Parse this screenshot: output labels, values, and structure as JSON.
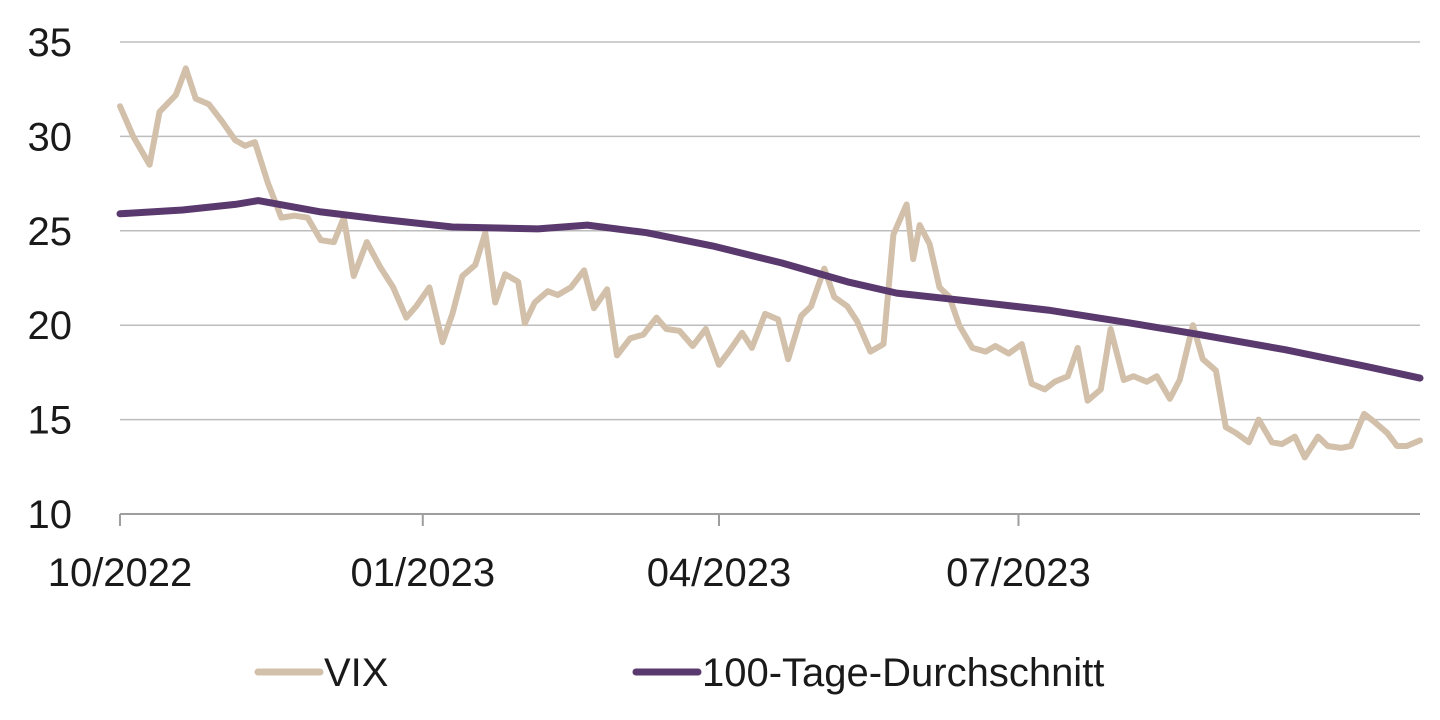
{
  "chart_data": {
    "type": "line",
    "title": "",
    "xlabel": "",
    "ylabel": "",
    "x_range": [
      "2022-10-01",
      "2023-10-31"
    ],
    "ylim": [
      10,
      35
    ],
    "y_ticks": [
      10,
      15,
      20,
      25,
      30,
      35
    ],
    "x_ticks": [
      {
        "date": "2022-10-01",
        "label": "10/2022"
      },
      {
        "date": "2023-01-01",
        "label": "01/2023"
      },
      {
        "date": "2023-04-01",
        "label": "04/2023"
      },
      {
        "date": "2023-07-01",
        "label": "07/2023"
      }
    ],
    "grid": "horizontal",
    "legend_position": "bottom",
    "series": [
      {
        "name": "VIX",
        "color": "#d2c0aa",
        "points": [
          [
            "2022-10-01",
            31.6
          ],
          [
            "2022-10-05",
            30.0
          ],
          [
            "2022-10-10",
            28.5
          ],
          [
            "2022-10-13",
            31.3
          ],
          [
            "2022-10-18",
            32.2
          ],
          [
            "2022-10-21",
            33.6
          ],
          [
            "2022-10-24",
            32.0
          ],
          [
            "2022-10-28",
            31.7
          ],
          [
            "2022-11-01",
            30.8
          ],
          [
            "2022-11-05",
            29.8
          ],
          [
            "2022-11-08",
            29.5
          ],
          [
            "2022-11-11",
            29.7
          ],
          [
            "2022-11-15",
            27.5
          ],
          [
            "2022-11-19",
            25.7
          ],
          [
            "2022-11-23",
            25.8
          ],
          [
            "2022-11-27",
            25.7
          ],
          [
            "2022-12-01",
            24.5
          ],
          [
            "2022-12-05",
            24.4
          ],
          [
            "2022-12-08",
            25.7
          ],
          [
            "2022-12-11",
            22.6
          ],
          [
            "2022-12-15",
            24.4
          ],
          [
            "2022-12-19",
            23.1
          ],
          [
            "2022-12-23",
            22.0
          ],
          [
            "2022-12-27",
            20.4
          ],
          [
            "2022-12-30",
            21.0
          ],
          [
            "2023-01-03",
            22.0
          ],
          [
            "2023-01-07",
            19.1
          ],
          [
            "2023-01-10",
            20.6
          ],
          [
            "2023-01-13",
            22.6
          ],
          [
            "2023-01-17",
            23.2
          ],
          [
            "2023-01-20",
            24.9
          ],
          [
            "2023-01-23",
            21.2
          ],
          [
            "2023-01-26",
            22.7
          ],
          [
            "2023-01-30",
            22.3
          ],
          [
            "2023-02-01",
            20.1
          ],
          [
            "2023-02-04",
            21.2
          ],
          [
            "2023-02-08",
            21.8
          ],
          [
            "2023-02-11",
            21.6
          ],
          [
            "2023-02-15",
            22.0
          ],
          [
            "2023-02-19",
            22.9
          ],
          [
            "2023-02-22",
            20.9
          ],
          [
            "2023-02-26",
            21.9
          ],
          [
            "2023-03-01",
            18.4
          ],
          [
            "2023-03-05",
            19.3
          ],
          [
            "2023-03-09",
            19.5
          ],
          [
            "2023-03-13",
            20.4
          ],
          [
            "2023-03-16",
            19.8
          ],
          [
            "2023-03-20",
            19.7
          ],
          [
            "2023-03-24",
            18.9
          ],
          [
            "2023-03-28",
            19.8
          ],
          [
            "2023-04-01",
            17.9
          ],
          [
            "2023-04-04",
            18.6
          ],
          [
            "2023-04-08",
            19.6
          ],
          [
            "2023-04-11",
            18.8
          ],
          [
            "2023-04-15",
            20.6
          ],
          [
            "2023-04-19",
            20.3
          ],
          [
            "2023-04-22",
            18.2
          ],
          [
            "2023-04-26",
            20.5
          ],
          [
            "2023-04-29",
            21.0
          ],
          [
            "2023-05-03",
            23.0
          ],
          [
            "2023-05-06",
            21.5
          ],
          [
            "2023-05-10",
            21.0
          ],
          [
            "2023-05-13",
            20.2
          ],
          [
            "2023-05-17",
            18.6
          ],
          [
            "2023-05-21",
            19.0
          ],
          [
            "2023-05-24",
            24.8
          ],
          [
            "2023-05-28",
            26.4
          ],
          [
            "2023-05-30",
            23.5
          ],
          [
            "2023-06-01",
            25.3
          ],
          [
            "2023-06-04",
            24.3
          ],
          [
            "2023-06-07",
            22.0
          ],
          [
            "2023-06-10",
            21.5
          ],
          [
            "2023-06-13",
            20.0
          ],
          [
            "2023-06-17",
            18.8
          ],
          [
            "2023-06-21",
            18.6
          ],
          [
            "2023-06-24",
            18.9
          ],
          [
            "2023-06-28",
            18.5
          ],
          [
            "2023-07-02",
            19.0
          ],
          [
            "2023-07-05",
            16.9
          ],
          [
            "2023-07-09",
            16.6
          ],
          [
            "2023-07-12",
            17.0
          ],
          [
            "2023-07-16",
            17.3
          ],
          [
            "2023-07-19",
            18.8
          ],
          [
            "2023-07-22",
            16.0
          ],
          [
            "2023-07-26",
            16.6
          ],
          [
            "2023-07-29",
            19.8
          ],
          [
            "2023-08-02",
            17.1
          ],
          [
            "2023-08-05",
            17.3
          ],
          [
            "2023-08-09",
            17.0
          ],
          [
            "2023-08-12",
            17.3
          ],
          [
            "2023-08-16",
            16.1
          ],
          [
            "2023-08-19",
            17.1
          ],
          [
            "2023-08-23",
            20.0
          ],
          [
            "2023-08-26",
            18.2
          ],
          [
            "2023-08-30",
            17.6
          ],
          [
            "2023-09-02",
            14.6
          ],
          [
            "2023-09-05",
            14.3
          ],
          [
            "2023-09-09",
            13.8
          ],
          [
            "2023-09-12",
            15.0
          ],
          [
            "2023-09-16",
            13.8
          ],
          [
            "2023-09-19",
            13.7
          ],
          [
            "2023-09-23",
            14.1
          ],
          [
            "2023-09-26",
            13.0
          ],
          [
            "2023-09-30",
            14.1
          ],
          [
            "2023-10-03",
            13.6
          ],
          [
            "2023-10-07",
            13.5
          ],
          [
            "2023-10-10",
            13.6
          ],
          [
            "2023-10-14",
            15.3
          ],
          [
            "2023-10-17",
            14.9
          ],
          [
            "2023-10-21",
            14.3
          ],
          [
            "2023-10-24",
            13.6
          ],
          [
            "2023-10-27",
            13.6
          ],
          [
            "2023-10-31",
            13.9
          ]
        ]
      },
      {
        "name": "100-Tage-Durchschnitt",
        "color": "#5a3a6e",
        "points": [
          [
            "2022-10-01",
            25.9
          ],
          [
            "2022-10-20",
            26.1
          ],
          [
            "2022-11-05",
            26.4
          ],
          [
            "2022-11-12",
            26.6
          ],
          [
            "2022-12-01",
            26.0
          ],
          [
            "2022-12-20",
            25.6
          ],
          [
            "2023-01-10",
            25.2
          ],
          [
            "2023-02-05",
            25.1
          ],
          [
            "2023-02-20",
            25.3
          ],
          [
            "2023-03-10",
            24.9
          ],
          [
            "2023-03-30",
            24.2
          ],
          [
            "2023-04-20",
            23.3
          ],
          [
            "2023-05-10",
            22.3
          ],
          [
            "2023-05-25",
            21.7
          ],
          [
            "2023-06-15",
            21.3
          ],
          [
            "2023-07-10",
            20.8
          ],
          [
            "2023-08-01",
            20.2
          ],
          [
            "2023-08-25",
            19.5
          ],
          [
            "2023-09-20",
            18.7
          ],
          [
            "2023-10-15",
            17.8
          ],
          [
            "2023-10-31",
            17.2
          ]
        ]
      }
    ]
  }
}
